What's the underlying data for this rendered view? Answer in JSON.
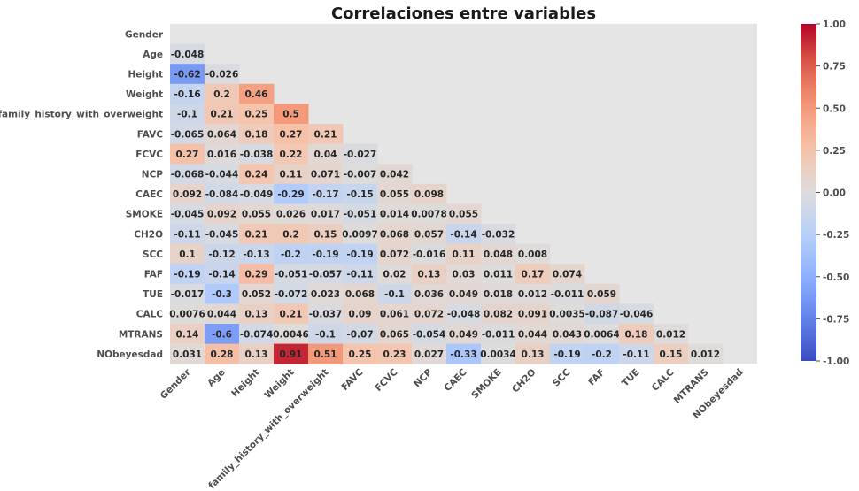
{
  "chart_data": {
    "type": "heatmap",
    "title": "Correlaciones entre variables",
    "variables": [
      "Gender",
      "Age",
      "Height",
      "Weight",
      "family_history_with_overweight",
      "FAVC",
      "FCVC",
      "NCP",
      "CAEC",
      "SMOKE",
      "CH2O",
      "SCC",
      "FAF",
      "TUE",
      "CALC",
      "MTRANS",
      "NObeyesdad"
    ],
    "mask": "upper-triangle-including-diagonal",
    "values": [
      [],
      [
        -0.048
      ],
      [
        -0.62,
        -0.026
      ],
      [
        -0.16,
        0.2,
        0.46
      ],
      [
        -0.1,
        0.21,
        0.25,
        0.5
      ],
      [
        -0.065,
        0.064,
        0.18,
        0.27,
        0.21
      ],
      [
        0.27,
        0.016,
        -0.038,
        0.22,
        0.04,
        -0.027
      ],
      [
        -0.068,
        -0.044,
        0.24,
        0.11,
        0.071,
        -0.007,
        0.042
      ],
      [
        0.092,
        -0.084,
        -0.049,
        -0.29,
        -0.17,
        -0.15,
        0.055,
        0.098
      ],
      [
        -0.045,
        0.092,
        0.055,
        0.026,
        0.017,
        -0.051,
        0.014,
        0.0078,
        0.055
      ],
      [
        -0.11,
        -0.045,
        0.21,
        0.2,
        0.15,
        0.0097,
        0.068,
        0.057,
        -0.14,
        -0.032
      ],
      [
        0.1,
        -0.12,
        -0.13,
        -0.2,
        -0.19,
        -0.19,
        0.072,
        -0.016,
        0.11,
        0.048,
        0.008
      ],
      [
        -0.19,
        -0.14,
        0.29,
        -0.051,
        -0.057,
        -0.11,
        0.02,
        0.13,
        0.03,
        0.011,
        0.17,
        0.074
      ],
      [
        -0.017,
        -0.3,
        0.052,
        -0.072,
        0.023,
        0.068,
        -0.1,
        0.036,
        0.049,
        0.018,
        0.012,
        -0.011,
        0.059
      ],
      [
        0.0076,
        0.044,
        0.13,
        0.21,
        -0.037,
        0.09,
        0.061,
        0.072,
        -0.048,
        0.082,
        0.091,
        0.0035,
        -0.087,
        -0.046
      ],
      [
        0.14,
        -0.6,
        -0.074,
        0.0046,
        -0.1,
        -0.07,
        0.065,
        -0.054,
        0.049,
        -0.011,
        0.044,
        0.043,
        0.0064,
        0.18,
        0.012
      ],
      [
        0.031,
        0.28,
        0.13,
        0.91,
        0.51,
        0.25,
        0.23,
        0.027,
        -0.33,
        0.0034,
        0.13,
        -0.19,
        -0.2,
        -0.11,
        0.15,
        0.012
      ]
    ],
    "colormap": "coolwarm",
    "vmin": -1.0,
    "vmax": 1.0,
    "colorbar_ticks": [
      "1.00",
      "0.75",
      "0.50",
      "0.25",
      "0.00",
      "-0.25",
      "-0.50",
      "-0.75",
      "-1.00"
    ],
    "colorbar_tick_values": [
      1.0,
      0.75,
      0.5,
      0.25,
      0.0,
      -0.25,
      -0.5,
      -0.75,
      -1.0
    ],
    "background_color": "#e5e5e5",
    "annotations": true,
    "grid": false,
    "legend": "colorbar-right"
  }
}
